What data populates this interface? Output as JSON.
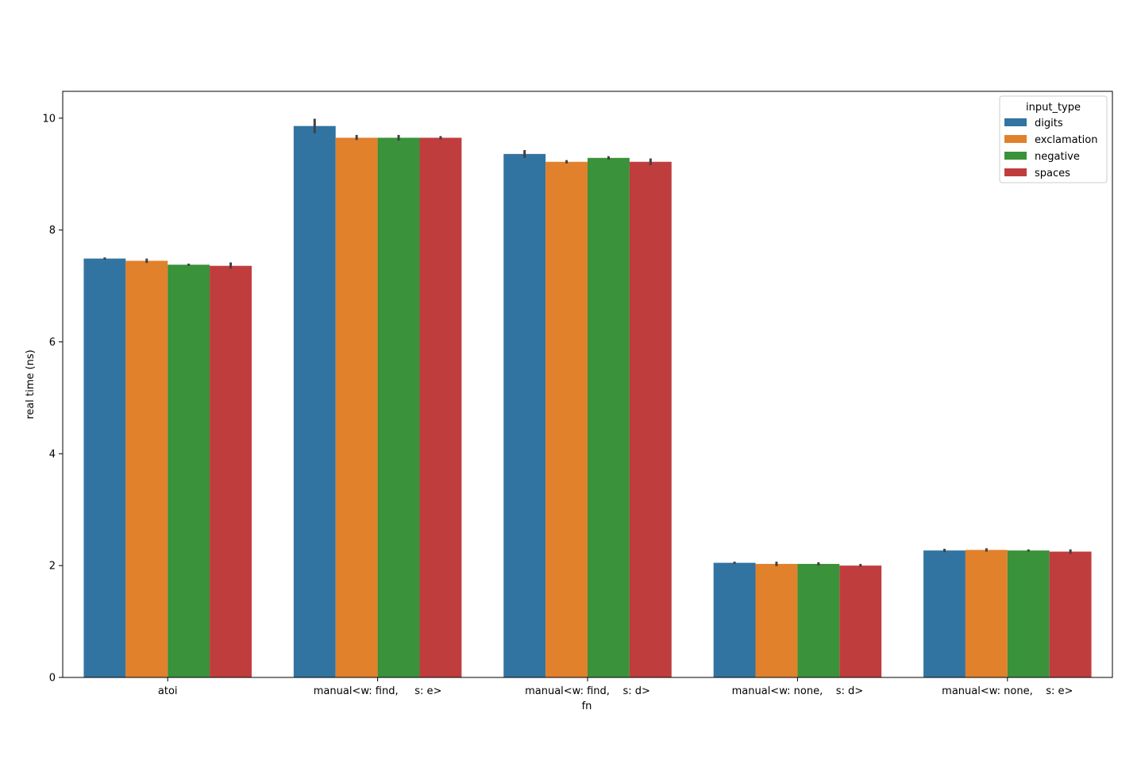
{
  "chart_data": {
    "type": "bar",
    "xlabel": "fn",
    "ylabel": "real time (ns)",
    "categories": [
      "atoi",
      "manual<w: find,     s: e>",
      "manual<w: find,    s: d>",
      "manual<w: none,    s: d>",
      "manual<w: none,    s: e>"
    ],
    "series": [
      {
        "name": "digits",
        "color": "#3274a1",
        "values": [
          7.49,
          9.86,
          9.36,
          2.05,
          2.27
        ],
        "error": [
          [
            7.47,
            7.51
          ],
          [
            9.73,
            9.99
          ],
          [
            9.29,
            9.43
          ],
          [
            2.03,
            2.07
          ],
          [
            2.24,
            2.3
          ]
        ]
      },
      {
        "name": "exclamation",
        "color": "#e1812c",
        "values": [
          7.45,
          9.65,
          9.22,
          2.03,
          2.28
        ],
        "error": [
          [
            7.41,
            7.49
          ],
          [
            9.61,
            9.7
          ],
          [
            9.19,
            9.25
          ],
          [
            1.99,
            2.07
          ],
          [
            2.25,
            2.31
          ]
        ]
      },
      {
        "name": "negative",
        "color": "#3a923a",
        "values": [
          7.38,
          9.65,
          9.29,
          2.03,
          2.27
        ],
        "error": [
          [
            7.36,
            7.4
          ],
          [
            9.6,
            9.7
          ],
          [
            9.26,
            9.32
          ],
          [
            2.0,
            2.06
          ],
          [
            2.25,
            2.29
          ]
        ]
      },
      {
        "name": "spaces",
        "color": "#c03d3e",
        "values": [
          7.36,
          9.65,
          9.22,
          2.0,
          2.25
        ],
        "error": [
          [
            7.31,
            7.42
          ],
          [
            9.62,
            9.68
          ],
          [
            9.16,
            9.28
          ],
          [
            1.98,
            2.03
          ],
          [
            2.21,
            2.29
          ]
        ]
      }
    ],
    "ylim": [
      0,
      10.48
    ],
    "yticks": [
      0,
      2,
      4,
      6,
      8,
      10
    ],
    "grid": false,
    "legend": {
      "title": "input_type",
      "placement": "top-right"
    }
  }
}
